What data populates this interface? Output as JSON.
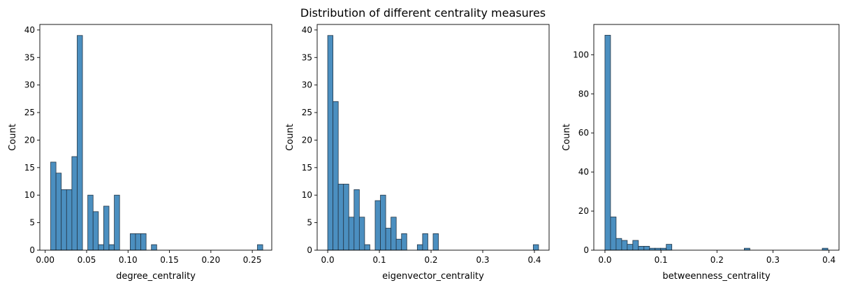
{
  "figure": {
    "suptitle": "Distribution of different centrality measures"
  },
  "colors": {
    "bar_fill": "#4b8fc0",
    "bar_edge": "#243646",
    "axis": "#000000"
  },
  "chart_data": [
    {
      "type": "bar",
      "title": "",
      "xlabel": "degree_centrality",
      "ylabel": "Count",
      "xlim": [
        -0.0065,
        0.2735
      ],
      "ylim": [
        0,
        41
      ],
      "xticks": [
        0.0,
        0.05,
        0.1,
        0.15,
        0.2,
        0.25
      ],
      "xtick_labels": [
        "0.00",
        "0.05",
        "0.10",
        "0.15",
        "0.20",
        "0.25"
      ],
      "yticks": [
        0,
        5,
        10,
        15,
        20,
        25,
        30,
        35,
        40
      ],
      "ytick_labels": [
        "0",
        "5",
        "10",
        "15",
        "20",
        "25",
        "30",
        "35",
        "40"
      ],
      "grid": false,
      "bins": {
        "start": 0.0066,
        "width": 0.0064,
        "counts": [
          16,
          14,
          11,
          11,
          17,
          39,
          0,
          10,
          7,
          1,
          8,
          1,
          10,
          0,
          0,
          3,
          3,
          3,
          0,
          1,
          0,
          0,
          0,
          0,
          0,
          0,
          0,
          0,
          0,
          0,
          0,
          0,
          0,
          0,
          0,
          0,
          0,
          0,
          0,
          1
        ]
      }
    },
    {
      "type": "bar",
      "title": "",
      "xlabel": "eigenvector_centrality",
      "ylabel": "Count",
      "xlim": [
        -0.0204,
        0.4284
      ],
      "ylim": [
        0,
        41
      ],
      "xticks": [
        0.0,
        0.1,
        0.2,
        0.3,
        0.4
      ],
      "xtick_labels": [
        "0.0",
        "0.1",
        "0.2",
        "0.3",
        "0.4"
      ],
      "yticks": [
        0,
        5,
        10,
        15,
        20,
        25,
        30,
        35,
        40
      ],
      "ytick_labels": [
        "0",
        "5",
        "10",
        "15",
        "20",
        "25",
        "30",
        "35",
        "40"
      ],
      "grid": false,
      "bins": {
        "start": 0.0,
        "width": 0.0102,
        "counts": [
          39,
          27,
          12,
          12,
          6,
          11,
          6,
          1,
          0,
          9,
          10,
          4,
          6,
          2,
          3,
          0,
          0,
          1,
          3,
          0,
          3,
          0,
          0,
          0,
          0,
          0,
          0,
          0,
          0,
          0,
          0,
          0,
          0,
          0,
          0,
          0,
          0,
          0,
          0,
          1
        ]
      }
    },
    {
      "type": "bar",
      "title": "",
      "xlabel": "betweenness_centrality",
      "ylabel": "Count",
      "xlim": [
        -0.0199,
        0.4179
      ],
      "ylim": [
        0,
        115.5
      ],
      "xticks": [
        0.0,
        0.1,
        0.2,
        0.3,
        0.4
      ],
      "xtick_labels": [
        "0.0",
        "0.1",
        "0.2",
        "0.3",
        "0.4"
      ],
      "yticks": [
        0,
        20,
        40,
        60,
        80,
        100
      ],
      "ytick_labels": [
        "0",
        "20",
        "40",
        "60",
        "80",
        "100"
      ],
      "grid": false,
      "bins": {
        "start": 0.0,
        "width": 0.00995,
        "counts": [
          110,
          17,
          6,
          5,
          3,
          5,
          2,
          2,
          1,
          1,
          1,
          3,
          0,
          0,
          0,
          0,
          0,
          0,
          0,
          0,
          0,
          0,
          0,
          0,
          0,
          1,
          0,
          0,
          0,
          0,
          0,
          0,
          0,
          0,
          0,
          0,
          0,
          0,
          0,
          1
        ]
      }
    }
  ]
}
